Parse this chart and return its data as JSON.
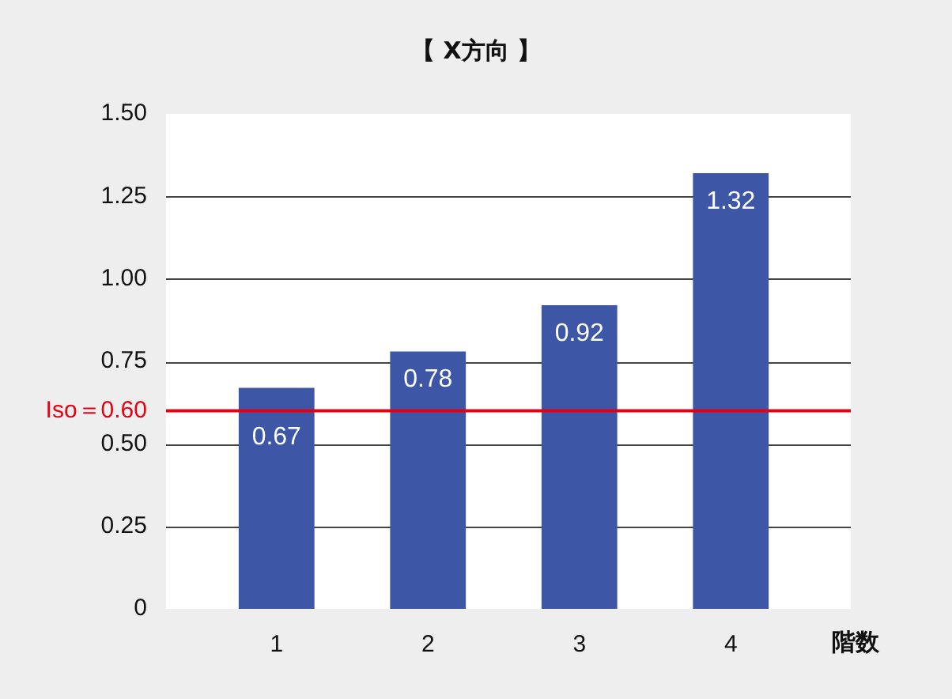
{
  "chart_data": {
    "type": "bar",
    "title": "【 X方向 】",
    "xlabel": "階数",
    "categories": [
      "1",
      "2",
      "3",
      "4"
    ],
    "values": [
      0.67,
      0.78,
      0.92,
      1.32
    ],
    "color": "#3d56a6",
    "ylim": [
      0,
      1.5
    ],
    "yticks": [
      0,
      0.25,
      {
        "value": 0.5,
        "label": "0.50"
      },
      0.75,
      {
        "value": 1,
        "label": "1.00"
      },
      1.25,
      {
        "value": 1.5,
        "label": "1.50"
      }
    ],
    "grid": "y",
    "data_labels": true,
    "ref_lines": [
      {
        "axis": "y",
        "value": 0.6,
        "label": "Iso＝0.60",
        "color": "#e60012"
      }
    ]
  }
}
